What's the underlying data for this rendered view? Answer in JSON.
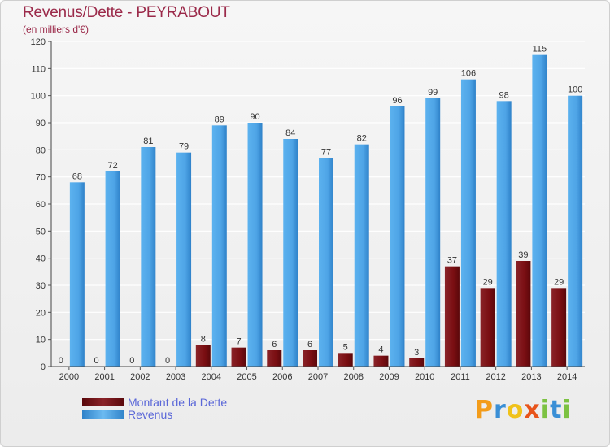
{
  "header": {
    "title": "Revenus/Dette - PEYRABOUT",
    "subtitle": "(en milliers d'€)"
  },
  "legend": {
    "items": [
      {
        "label": "Montant de la Dette",
        "color": "#7a0e12"
      },
      {
        "label": "Revenus",
        "color": "#4ea4e6"
      }
    ]
  },
  "logo": {
    "text": "Proxiti",
    "letters": [
      {
        "ch": "P",
        "color": "#f39c1a"
      },
      {
        "ch": "r",
        "color": "#3a8fd6"
      },
      {
        "ch": "o",
        "color": "#f0c21a"
      },
      {
        "ch": "x",
        "color": "#e8541b"
      },
      {
        "ch": "i",
        "color": "#7cc242"
      },
      {
        "ch": "t",
        "color": "#3a8fd6"
      },
      {
        "ch": "i",
        "color": "#7cc242"
      }
    ]
  },
  "chart_data": {
    "type": "bar",
    "title": "Revenus/Dette - PEYRABOUT",
    "subtitle": "(en milliers d'€)",
    "categories": [
      "2000",
      "2001",
      "2002",
      "2003",
      "2004",
      "2005",
      "2006",
      "2007",
      "2008",
      "2009",
      "2010",
      "2011",
      "2012",
      "2013",
      "2014"
    ],
    "series": [
      {
        "name": "Montant de la Dette",
        "color": "#7a0e12",
        "values": [
          0,
          0,
          0,
          0,
          8,
          7,
          6,
          6,
          5,
          4,
          3,
          37,
          29,
          39,
          29
        ]
      },
      {
        "name": "Revenus",
        "color": "#4ea4e6",
        "values": [
          68,
          72,
          81,
          79,
          89,
          90,
          84,
          77,
          82,
          96,
          99,
          106,
          98,
          115,
          100
        ]
      }
    ],
    "ylim": [
      0,
      120
    ],
    "yticks": [
      0,
      10,
      20,
      30,
      40,
      50,
      60,
      70,
      80,
      90,
      100,
      110,
      120
    ],
    "grid": true,
    "legend_position": "bottom-left"
  }
}
